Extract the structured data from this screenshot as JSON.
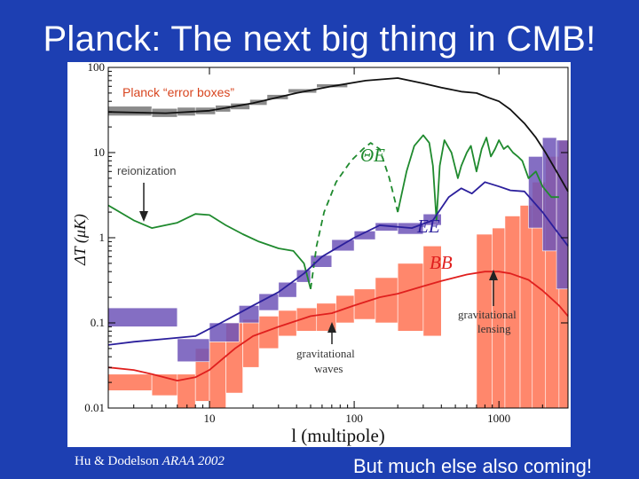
{
  "slide": {
    "title": "Planck: The next big thing in CMB!",
    "citation_authors": "Hu & Dodelson",
    "citation_journal": "ARAA 2002",
    "footer": "But much else also coming!"
  },
  "colors": {
    "background": "#1d3fb2",
    "tt": "#111111",
    "te": "#1f8a2e",
    "ee": "#2b1f9c",
    "bb": "#e0201e",
    "bb_box": "#ff7a5c",
    "ee_box": "#6f55b8",
    "tt_box": "#777777",
    "planck_label": "#d8451f"
  },
  "chart_data": {
    "type": "line",
    "xscale": "log",
    "yscale": "log",
    "xlim": [
      2,
      3000
    ],
    "ylim": [
      0.01,
      100
    ],
    "xlabel": "l (multipole)",
    "ylabel": "ΔT (μK)",
    "xticks": [
      {
        "v": 10,
        "label": "10"
      },
      {
        "v": 100,
        "label": "100"
      },
      {
        "v": 1000,
        "label": "1000"
      }
    ],
    "yticks": [
      {
        "v": 0.01,
        "label": "0.01"
      },
      {
        "v": 0.1,
        "label": "0.1"
      },
      {
        "v": 1,
        "label": "1"
      },
      {
        "v": 10,
        "label": "10"
      },
      {
        "v": 100,
        "label": "100"
      }
    ],
    "series": [
      {
        "name": "",
        "key": "tt",
        "color": "#111111",
        "dash": "",
        "points": [
          [
            2,
            30
          ],
          [
            5,
            29
          ],
          [
            10,
            31
          ],
          [
            20,
            38
          ],
          [
            40,
            50
          ],
          [
            70,
            60
          ],
          [
            120,
            70
          ],
          [
            200,
            75
          ],
          [
            300,
            65
          ],
          [
            400,
            58
          ],
          [
            550,
            52
          ],
          [
            700,
            50
          ],
          [
            850,
            44
          ],
          [
            1000,
            40
          ],
          [
            1200,
            32
          ],
          [
            1500,
            22
          ],
          [
            1800,
            15
          ],
          [
            2100,
            10
          ],
          [
            2500,
            6
          ],
          [
            3000,
            3.5
          ]
        ]
      },
      {
        "name": "ΘE",
        "key": "te",
        "color": "#1f8a2e",
        "dash": "",
        "points": [
          [
            2,
            2.4
          ],
          [
            3,
            1.6
          ],
          [
            4,
            1.3
          ],
          [
            6,
            1.5
          ],
          [
            8,
            1.9
          ],
          [
            10,
            1.85
          ],
          [
            13,
            1.4
          ],
          [
            17,
            1.1
          ],
          [
            22,
            0.9
          ],
          [
            30,
            0.75
          ],
          [
            38,
            0.7
          ],
          [
            45,
            0.5
          ],
          [
            50,
            0.25
          ]
        ]
      },
      {
        "name": "",
        "key": "te_dash",
        "color": "#1f8a2e",
        "dash": "7,5",
        "points": [
          [
            50,
            0.25
          ],
          [
            55,
            0.8
          ],
          [
            62,
            2
          ],
          [
            75,
            4.5
          ],
          [
            95,
            8
          ],
          [
            115,
            11
          ],
          [
            130,
            13
          ],
          [
            150,
            11
          ],
          [
            175,
            5
          ],
          [
            200,
            2
          ]
        ]
      },
      {
        "name": "",
        "key": "te_hi",
        "color": "#1f8a2e",
        "dash": "",
        "points": [
          [
            200,
            2
          ],
          [
            230,
            6
          ],
          [
            260,
            12
          ],
          [
            300,
            16
          ],
          [
            330,
            13
          ],
          [
            350,
            7
          ],
          [
            370,
            1.6
          ],
          [
            390,
            7
          ],
          [
            420,
            14
          ],
          [
            470,
            10
          ],
          [
            520,
            5
          ],
          [
            550,
            7
          ],
          [
            600,
            10
          ],
          [
            640,
            12
          ],
          [
            700,
            6
          ],
          [
            760,
            11
          ],
          [
            820,
            15
          ],
          [
            880,
            9
          ],
          [
            940,
            11
          ],
          [
            1000,
            14
          ],
          [
            1080,
            11
          ],
          [
            1150,
            12
          ],
          [
            1250,
            10
          ],
          [
            1350,
            9
          ],
          [
            1450,
            8
          ],
          [
            1600,
            5
          ],
          [
            1800,
            6
          ],
          [
            2000,
            4
          ],
          [
            2300,
            3
          ],
          [
            2600,
            3
          ]
        ]
      },
      {
        "name": "EE",
        "key": "ee",
        "color": "#2b1f9c",
        "dash": "",
        "points": [
          [
            2,
            0.055
          ],
          [
            3,
            0.06
          ],
          [
            5,
            0.065
          ],
          [
            8,
            0.07
          ],
          [
            12,
            0.1
          ],
          [
            16,
            0.13
          ],
          [
            20,
            0.16
          ],
          [
            30,
            0.23
          ],
          [
            45,
            0.38
          ],
          [
            60,
            0.6
          ],
          [
            80,
            0.8
          ],
          [
            100,
            1
          ],
          [
            150,
            1.4
          ],
          [
            250,
            1.3
          ],
          [
            350,
            1.6
          ],
          [
            450,
            3
          ],
          [
            550,
            3.8
          ],
          [
            650,
            3.3
          ],
          [
            800,
            4.5
          ],
          [
            1000,
            4
          ],
          [
            1200,
            3.6
          ],
          [
            1500,
            3.5
          ],
          [
            2000,
            2
          ],
          [
            2500,
            1.2
          ],
          [
            3000,
            0.8
          ]
        ]
      },
      {
        "name": "BB",
        "key": "bb",
        "color": "#e0201e",
        "dash": "",
        "points": [
          [
            2,
            0.03
          ],
          [
            3,
            0.028
          ],
          [
            4,
            0.025
          ],
          [
            6,
            0.021
          ],
          [
            8,
            0.023
          ],
          [
            10,
            0.028
          ],
          [
            15,
            0.05
          ],
          [
            20,
            0.07
          ],
          [
            30,
            0.09
          ],
          [
            50,
            0.12
          ],
          [
            70,
            0.13
          ],
          [
            100,
            0.16
          ],
          [
            150,
            0.2
          ],
          [
            200,
            0.22
          ],
          [
            300,
            0.27
          ],
          [
            400,
            0.31
          ],
          [
            600,
            0.37
          ],
          [
            800,
            0.4
          ],
          [
            1000,
            0.4
          ],
          [
            1200,
            0.38
          ],
          [
            1600,
            0.32
          ],
          [
            2000,
            0.24
          ],
          [
            2600,
            0.16
          ],
          [
            3000,
            0.12
          ]
        ]
      }
    ],
    "error_boxes": {
      "tt": [
        [
          2,
          4,
          27,
          35
        ],
        [
          4,
          6,
          26,
          33
        ],
        [
          6,
          8,
          27,
          34
        ],
        [
          8,
          11,
          28,
          34
        ],
        [
          11,
          14,
          30,
          36
        ],
        [
          14,
          19,
          32,
          38
        ],
        [
          19,
          25,
          36,
          42
        ],
        [
          25,
          35,
          42,
          48
        ],
        [
          35,
          55,
          50,
          56
        ],
        [
          55,
          90,
          58,
          64
        ]
      ],
      "ee": [
        [
          2,
          6,
          0.09,
          0.15
        ],
        [
          6,
          10,
          0.035,
          0.065
        ],
        [
          10,
          16,
          0.06,
          0.1
        ],
        [
          16,
          22,
          0.1,
          0.16
        ],
        [
          22,
          30,
          0.14,
          0.22
        ],
        [
          30,
          40,
          0.2,
          0.3
        ],
        [
          40,
          50,
          0.3,
          0.42
        ],
        [
          50,
          70,
          0.45,
          0.62
        ],
        [
          70,
          100,
          0.7,
          0.95
        ],
        [
          100,
          140,
          0.95,
          1.2
        ],
        [
          140,
          200,
          1.2,
          1.5
        ],
        [
          200,
          300,
          1.1,
          1.5
        ],
        [
          300,
          400,
          1.4,
          1.9
        ],
        [
          1600,
          2000,
          1.3,
          9
        ],
        [
          2000,
          2500,
          0.7,
          15
        ],
        [
          2500,
          3000,
          0.25,
          14
        ]
      ],
      "bb": [
        [
          2,
          4,
          0.016,
          0.025
        ],
        [
          4,
          6,
          0.014,
          0.025
        ],
        [
          6,
          8,
          0.01,
          0.025
        ],
        [
          8,
          10,
          0.012,
          0.05
        ],
        [
          10,
          13,
          0.01,
          0.06
        ],
        [
          13,
          17,
          0.015,
          0.1
        ],
        [
          17,
          22,
          0.03,
          0.11
        ],
        [
          22,
          30,
          0.05,
          0.12
        ],
        [
          30,
          40,
          0.07,
          0.14
        ],
        [
          40,
          55,
          0.08,
          0.15
        ],
        [
          55,
          75,
          0.08,
          0.17
        ],
        [
          75,
          100,
          0.1,
          0.21
        ],
        [
          100,
          140,
          0.11,
          0.25
        ],
        [
          140,
          200,
          0.1,
          0.34
        ],
        [
          200,
          300,
          0.08,
          0.5
        ],
        [
          300,
          400,
          0.07,
          0.8
        ],
        [
          700,
          900,
          0.01,
          1.1
        ],
        [
          900,
          1100,
          0.01,
          1.3
        ],
        [
          1100,
          1400,
          0.01,
          1.8
        ],
        [
          1400,
          1700,
          0.01,
          2.4
        ],
        [
          1700,
          2100,
          0.01,
          4.5
        ],
        [
          2100,
          2600,
          0.01,
          9
        ],
        [
          2600,
          3000,
          0.01,
          14
        ]
      ]
    },
    "annotations": {
      "planck": "Planck “error boxes”",
      "reionization": "reionization",
      "te": "ΘE",
      "ee": "EE",
      "bb": "BB",
      "grav_lensing": [
        "gravitational",
        "lensing"
      ],
      "grav_waves": [
        "gravitational",
        "waves"
      ]
    },
    "grid": false
  }
}
